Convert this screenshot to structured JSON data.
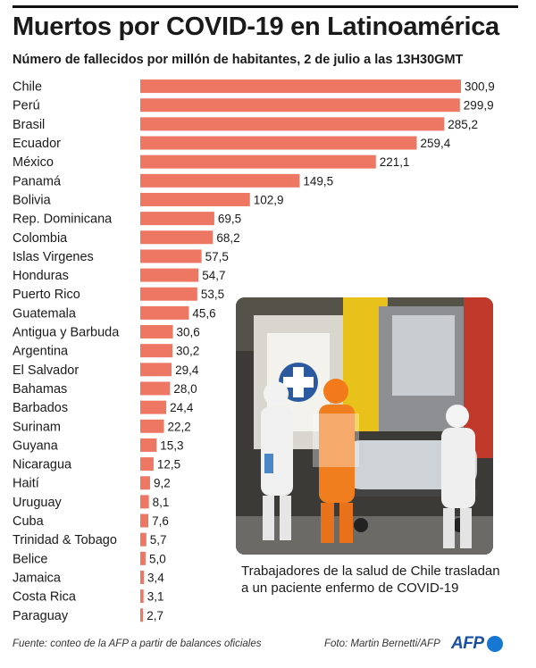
{
  "title": "Muertos por COVID-19 en Latinoamérica",
  "subtitle": "Número de fallecidos por millón de habitantes, 2 de julio a las 13H30GMT",
  "chart_data": {
    "type": "bar",
    "orientation": "horizontal",
    "categories": [
      "Chile",
      "Perú",
      "Brasil",
      "Ecuador",
      "México",
      "Panamá",
      "Bolivia",
      "Rep. Dominicana",
      "Colombia",
      "Islas Virgenes",
      "Honduras",
      "Puerto Rico",
      "Guatemala",
      "Antigua y Barbuda",
      "Argentina",
      "El Salvador",
      "Bahamas",
      "Barbados",
      "Surinam",
      "Guyana",
      "Nicaragua",
      "Haití",
      "Uruguay",
      "Cuba",
      "Trinidad & Tobago",
      "Belice",
      "Jamaica",
      "Costa Rica",
      "Paraguay"
    ],
    "values": [
      300.9,
      299.9,
      285.2,
      259.4,
      221.1,
      149.5,
      102.9,
      69.5,
      68.2,
      57.5,
      54.7,
      53.5,
      45.6,
      30.6,
      30.2,
      29.4,
      28.0,
      24.4,
      22.2,
      15.3,
      12.5,
      9.2,
      8.1,
      7.6,
      5.7,
      5.0,
      3.4,
      3.1,
      2.7
    ],
    "value_labels": [
      "300,9",
      "299,9",
      "285,2",
      "259,4",
      "221,1",
      "149,5",
      "102,9",
      "69,5",
      "68,2",
      "57,5",
      "54,7",
      "53,5",
      "45,6",
      "30,6",
      "30,2",
      "29,4",
      "28,0",
      "24,4",
      "22,2",
      "15,3",
      "12,5",
      "9,2",
      "8,1",
      "7,6",
      "5,7",
      "5,0",
      "3,4",
      "3,1",
      "2,7"
    ],
    "xlim": [
      0,
      300.9
    ],
    "grid": false,
    "bar_color": "#ee7764"
  },
  "photo": {
    "caption": "Trabajadores de la salud de Chile trasladan a un paciente enfermo de COVID-19"
  },
  "footer": {
    "source": "Fuente: conteo de la AFP a partir de balances oficiales",
    "credit": "Foto: Martin Bernetti/AFP",
    "logo": "AFP"
  }
}
